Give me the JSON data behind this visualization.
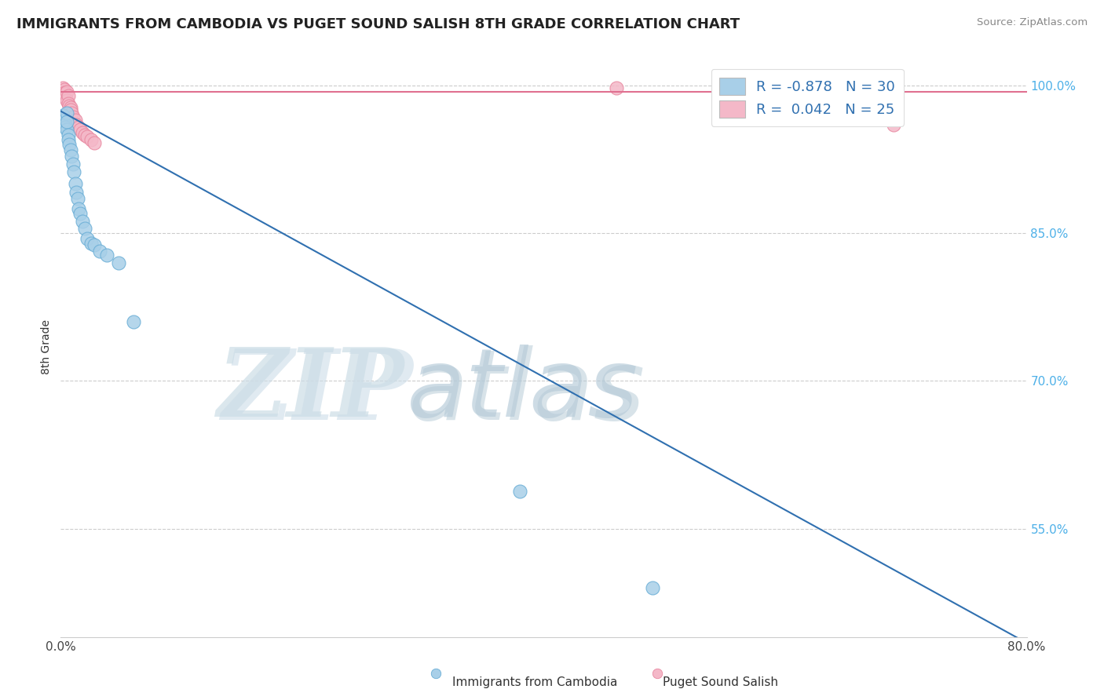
{
  "title": "IMMIGRANTS FROM CAMBODIA VS PUGET SOUND SALISH 8TH GRADE CORRELATION CHART",
  "source": "Source: ZipAtlas.com",
  "ylabel": "8th Grade",
  "xlim": [
    0.0,
    0.8
  ],
  "ylim": [
    0.44,
    1.03
  ],
  "yticks": [
    0.55,
    0.7,
    0.85,
    1.0
  ],
  "yticklabels": [
    "55.0%",
    "70.0%",
    "85.0%",
    "100.0%"
  ],
  "blue_color": "#a8cfe8",
  "blue_edge_color": "#6aaed6",
  "blue_line_color": "#3070b0",
  "pink_color": "#f4b8c8",
  "pink_edge_color": "#e888a0",
  "pink_line_color": "#e07090",
  "watermark_zip": "ZIP",
  "watermark_atlas": "atlas",
  "watermark_color_zip": "#c8dce8",
  "watermark_color_atlas": "#b0cce0",
  "blue_scatter_x": [
    0.002,
    0.003,
    0.004,
    0.004,
    0.005,
    0.005,
    0.005,
    0.006,
    0.006,
    0.007,
    0.008,
    0.009,
    0.01,
    0.011,
    0.012,
    0.013,
    0.014,
    0.015,
    0.016,
    0.018,
    0.02,
    0.022,
    0.025,
    0.028,
    0.032,
    0.038,
    0.048,
    0.06,
    0.38,
    0.49
  ],
  "blue_scatter_y": [
    0.97,
    0.965,
    0.96,
    0.958,
    0.972,
    0.955,
    0.963,
    0.95,
    0.945,
    0.94,
    0.935,
    0.928,
    0.92,
    0.912,
    0.9,
    0.892,
    0.885,
    0.875,
    0.87,
    0.862,
    0.855,
    0.845,
    0.84,
    0.838,
    0.832,
    0.828,
    0.82,
    0.76,
    0.588,
    0.49
  ],
  "pink_scatter_x": [
    0.002,
    0.003,
    0.003,
    0.004,
    0.004,
    0.005,
    0.005,
    0.006,
    0.006,
    0.007,
    0.008,
    0.008,
    0.009,
    0.01,
    0.012,
    0.013,
    0.015,
    0.016,
    0.018,
    0.02,
    0.022,
    0.025,
    0.028,
    0.46,
    0.69
  ],
  "pink_scatter_y": [
    0.998,
    0.996,
    0.993,
    0.992,
    0.988,
    0.994,
    0.985,
    0.99,
    0.982,
    0.979,
    0.978,
    0.975,
    0.972,
    0.968,
    0.965,
    0.96,
    0.958,
    0.955,
    0.952,
    0.95,
    0.948,
    0.945,
    0.942,
    0.998,
    0.96
  ],
  "blue_line_x0": 0.0,
  "blue_line_x1": 0.8,
  "blue_line_y0": 0.974,
  "blue_line_y1": 0.434,
  "pink_line_y": 0.994,
  "legend_text1": "R = -0.878   N = 30",
  "legend_text2": "R =  0.042   N = 25",
  "bottom_legend_blue": "Immigrants from Cambodia",
  "bottom_legend_pink": "Puget Sound Salish"
}
